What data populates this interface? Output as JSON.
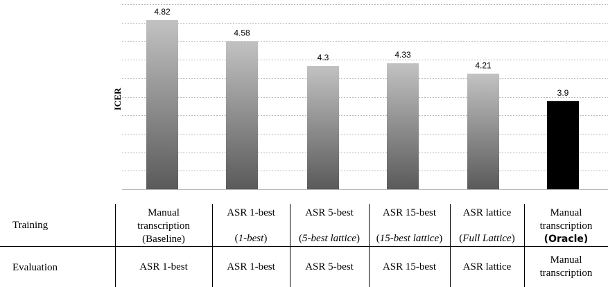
{
  "chart_data": {
    "type": "bar",
    "categories": [
      "Manual transcription (Baseline)",
      "ASR 1-best (1-best)",
      "ASR 5-best (5-best lattice)",
      "ASR 15-best (15-best lattice)",
      "ASR lattice (Full Lattice)",
      "Manual transcription (Oracle)"
    ],
    "values": [
      4.82,
      4.58,
      4.3,
      4.33,
      4.21,
      3.9
    ],
    "value_labels": [
      "4.82",
      "4.58",
      "4.3",
      "4.33",
      "4.21",
      "3.9"
    ],
    "ylabel": "ICER",
    "ylim": [
      2.9,
      5.0
    ],
    "grid": true,
    "colors": {
      "gradient_top": "#c2c2c2",
      "gradient_bottom": "#5a5a5a",
      "highlight": "#000000",
      "grid": "#b8b8b8"
    },
    "highlight_index": 5
  },
  "table": {
    "row_labels": {
      "training": "Training",
      "evaluation": "Evaluation"
    },
    "training": [
      {
        "main": "Manual transcription",
        "detail": "(Baseline)"
      },
      {
        "main": "ASR 1-best",
        "detail_open": "(",
        "detail_em": "1-best",
        "detail_close": ")"
      },
      {
        "main": "ASR 5-best",
        "detail_open": "(",
        "detail_em": "5-best lattice",
        "detail_close": ")"
      },
      {
        "main": "ASR 15-best",
        "detail_open": "(",
        "detail_em": "15-best lattice",
        "detail_close": ")"
      },
      {
        "main": "ASR lattice",
        "detail_open": "(",
        "detail_em": "Full Lattice",
        "detail_close": ")"
      },
      {
        "main": "Manual transcription",
        "detail_bold": "(Oracle)"
      }
    ],
    "evaluation": [
      "ASR 1-best",
      "ASR 1-best",
      "ASR 5-best",
      "ASR 15-best",
      "ASR lattice",
      "Manual transcription"
    ]
  }
}
